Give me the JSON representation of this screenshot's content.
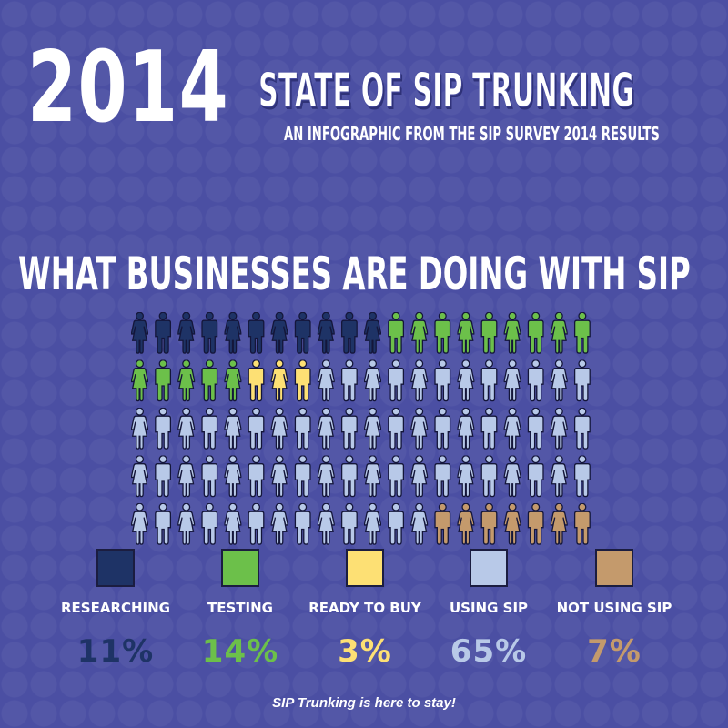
{
  "header": {
    "year": "2014",
    "title": "STATE OF SIP TRUNKING",
    "subtitle": "AN INFOGRAPHIC FROM THE SIP SURVEY 2014 RESULTS"
  },
  "heading": "WHAT BUSINESSES ARE DOING WITH SIP",
  "chart_data": {
    "type": "pictogram",
    "title": "WHAT BUSINESSES ARE DOING WITH SIP",
    "total_icons": 100,
    "rows": 5,
    "columns": 20,
    "series": [
      {
        "name": "RESEARCHING",
        "value": 11,
        "color": "#1e3366"
      },
      {
        "name": "TESTING",
        "value": 14,
        "color": "#6cc04a"
      },
      {
        "name": "READY TO BUY",
        "value": 3,
        "color": "#fde074"
      },
      {
        "name": "USING SIP",
        "value": 65,
        "color": "#b8c9e8"
      },
      {
        "name": "NOT USING SIP",
        "value": 7,
        "color": "#c49a6c"
      }
    ]
  },
  "legend": [
    {
      "label": "RESEARCHING",
      "percent": "11%",
      "color": "#1e3366"
    },
    {
      "label": "TESTING",
      "percent": "14%",
      "color": "#6cc04a"
    },
    {
      "label": "READY TO BUY",
      "percent": "3%",
      "color": "#fde074"
    },
    {
      "label": "USING SIP",
      "percent": "65%",
      "color": "#b8c9e8"
    },
    {
      "label": "NOT USING SIP",
      "percent": "7%",
      "color": "#c49a6c"
    }
  ],
  "tagline": "SIP Trunking is here to stay!"
}
